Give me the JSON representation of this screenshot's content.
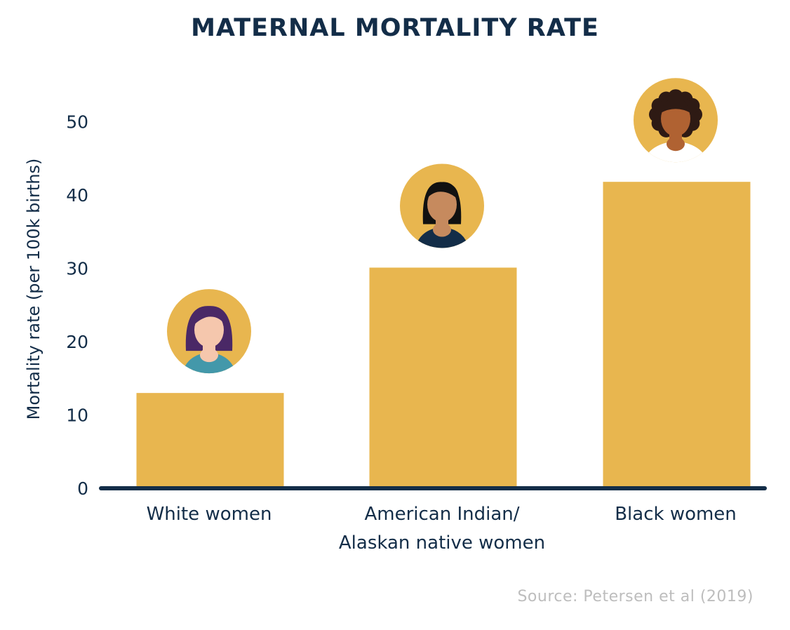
{
  "chart_data": {
    "type": "bar",
    "title": "MATERNAL MORTALITY RATE",
    "ylabel": "Mortality rate  (per 100k births)",
    "xlabel": "",
    "ylim": [
      0,
      55
    ],
    "yticks": [
      0,
      10,
      20,
      30,
      40,
      50
    ],
    "categories": [
      [
        "White women"
      ],
      [
        "American Indian/",
        "Alaskan native women"
      ],
      [
        "Black women"
      ]
    ],
    "values": [
      13,
      30.1,
      41.8
    ],
    "avatars": [
      "white-woman-avatar-icon",
      "american-indian-woman-avatar-icon",
      "black-woman-avatar-icon"
    ],
    "grid": false,
    "legend": "none"
  },
  "source": "Source: Petersen et al (2019)",
  "colors": {
    "bar": "#e8b64f",
    "axis": "#132d48",
    "text": "#132d48",
    "source": "#bdbdbd",
    "skin_light": "#f5c7ad",
    "skin_medium": "#c68a5e",
    "skin_dark": "#b06232",
    "hair_purple": "#4a2866",
    "hair_black": "#111111",
    "hair_dark": "#2e1a14",
    "shirt_teal": "#4398aa",
    "shirt_navy": "#132d48",
    "shirt_white": "#ffffff"
  }
}
